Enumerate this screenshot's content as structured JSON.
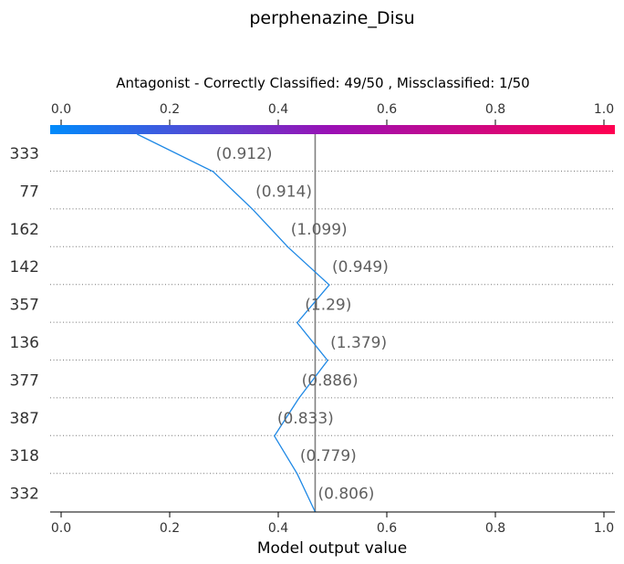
{
  "chart_data": {
    "type": "line",
    "title": "perphenazine_Disu",
    "subtitle": "Antagonist - Correctly Classified: 49/50 , Missclassified: 1/50",
    "xlabel": "Model output value",
    "xlim": [
      0.0,
      1.0
    ],
    "x_ticks": [
      "0.0",
      "0.2",
      "0.4",
      "0.6",
      "0.8",
      "1.0"
    ],
    "colorbar": {
      "from": "#008bfb",
      "mid": "#9b10b4",
      "to": "#ff0051"
    },
    "base_value": 0.468,
    "line_color": "#1e88e5",
    "reference_line_color": "#808080",
    "rows": [
      {
        "feature": "333",
        "annotation": "(0.912)",
        "value": 0.28
      },
      {
        "feature": "77",
        "annotation": "(0.914)",
        "value": 0.353
      },
      {
        "feature": "162",
        "annotation": "(1.099)",
        "value": 0.418
      },
      {
        "feature": "142",
        "annotation": "(0.949)",
        "value": 0.494
      },
      {
        "feature": "357",
        "annotation": "(1.29)",
        "value": 0.435
      },
      {
        "feature": "136",
        "annotation": "(1.379)",
        "value": 0.491
      },
      {
        "feature": "377",
        "annotation": "(0.886)",
        "value": 0.438
      },
      {
        "feature": "387",
        "annotation": "(0.833)",
        "value": 0.393
      },
      {
        "feature": "318",
        "annotation": "(0.779)",
        "value": 0.435
      },
      {
        "feature": "332",
        "annotation": "(0.806)",
        "value": 0.468
      }
    ],
    "start_value": 0.14
  }
}
